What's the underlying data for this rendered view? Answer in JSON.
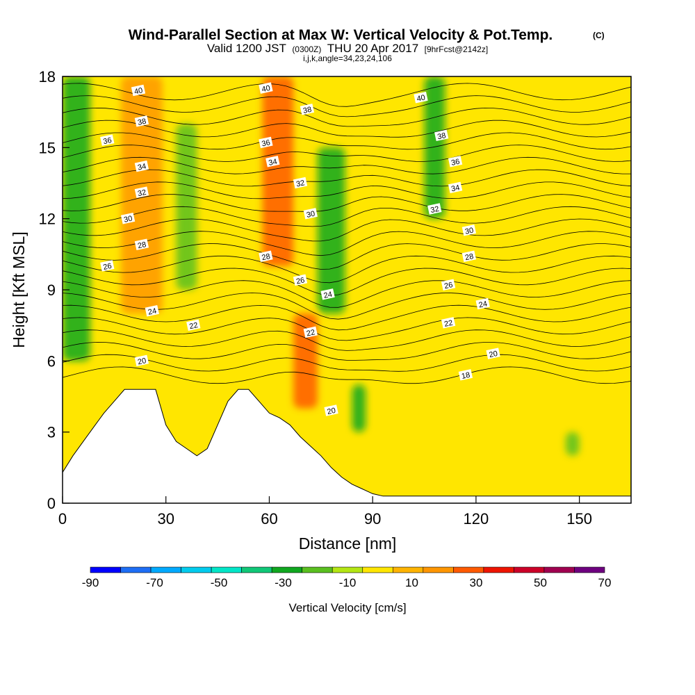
{
  "header": {
    "title": "Wind-Parallel Section at Max W: Vertical Velocity & Pot.Temp.",
    "title_mark": "(C)",
    "valid_prefix": "Valid 1200 JST",
    "valid_zulu": "(0300Z)",
    "valid_date": "THU 20 Apr 2017",
    "valid_fcst": "[9hrFcst@2142z]",
    "section_params": "i,j,k,angle=34,23,24,106"
  },
  "chart_data": {
    "type": "heatmap",
    "title": "Wind-Parallel Section at Max W: Vertical Velocity & Pot.Temp.",
    "xlabel": "Distance [nm]",
    "ylabel": "Height [Kft MSL]",
    "xlim": [
      0,
      165
    ],
    "ylim": [
      0,
      18
    ],
    "x_ticks": [
      0,
      30,
      60,
      90,
      120,
      150
    ],
    "y_ticks": [
      0,
      3,
      6,
      9,
      12,
      15,
      18
    ],
    "colorbar": {
      "label": "Vertical Velocity [cm/s]",
      "bounds": [
        -90,
        -80,
        -70,
        -60,
        -50,
        -40,
        -30,
        -20,
        -10,
        0,
        10,
        20,
        30,
        40,
        50,
        60,
        70
      ],
      "tick_values": [
        -90,
        -70,
        -50,
        -30,
        -10,
        10,
        30,
        50,
        70
      ],
      "colors": [
        "#0000ff",
        "#1e6ef5",
        "#00aaff",
        "#00ccee",
        "#00e6c8",
        "#10c878",
        "#10a820",
        "#5ac020",
        "#b4e614",
        "#ffe600",
        "#ffb400",
        "#ff9600",
        "#ff5a00",
        "#ee1400",
        "#cc0028",
        "#a00050",
        "#6e0080"
      ]
    },
    "velocity_field_cells": [
      {
        "x": [
          0,
          8
        ],
        "y": [
          6,
          18
        ],
        "w": -25
      },
      {
        "x": [
          17,
          29
        ],
        "y": [
          8,
          18
        ],
        "w": 25
      },
      {
        "x": [
          33,
          39
        ],
        "y": [
          9,
          16
        ],
        "w": -12
      },
      {
        "x": [
          58,
          67
        ],
        "y": [
          10,
          18
        ],
        "w": 30
      },
      {
        "x": [
          67,
          74
        ],
        "y": [
          4,
          8
        ],
        "w": 35
      },
      {
        "x": [
          74,
          82
        ],
        "y": [
          8,
          15
        ],
        "w": -25
      },
      {
        "x": [
          84,
          88
        ],
        "y": [
          3,
          5
        ],
        "w": -25
      },
      {
        "x": [
          105,
          111
        ],
        "y": [
          12,
          18
        ],
        "w": -25
      },
      {
        "x": [
          146,
          150
        ],
        "y": [
          2,
          3
        ],
        "w": -20
      }
    ],
    "terrain": {
      "x": [
        0,
        3,
        6,
        9,
        12,
        15,
        18,
        21,
        24,
        27,
        30,
        33,
        36,
        39,
        42,
        45,
        48,
        51,
        54,
        57,
        60,
        63,
        66,
        69,
        72,
        75,
        78,
        81,
        84,
        87,
        90,
        93,
        96,
        99,
        102,
        105,
        108,
        111,
        114,
        117,
        120,
        123,
        126,
        129,
        132,
        135,
        138,
        141,
        144,
        147,
        150,
        153,
        156,
        159,
        162,
        165
      ],
      "height_kft": [
        1.3,
        2.0,
        2.6,
        3.2,
        3.8,
        4.3,
        4.8,
        4.8,
        4.8,
        4.8,
        3.3,
        2.6,
        2.3,
        2.0,
        2.3,
        3.3,
        4.3,
        4.8,
        4.8,
        4.3,
        3.8,
        3.6,
        3.3,
        2.8,
        2.4,
        2.0,
        1.5,
        1.1,
        0.8,
        0.6,
        0.4,
        0.3,
        0.3,
        0.3,
        0.3,
        0.3,
        0.3,
        0.3,
        0.3,
        0.3,
        0.3,
        0.3,
        0.3,
        0.3,
        0.3,
        0.3,
        0.3,
        0.3,
        0.3,
        0.3,
        0.3,
        0.3,
        0.3,
        0.3,
        0.3,
        0.3
      ]
    },
    "theta_contour_labels": [
      {
        "text": "40",
        "x": 22,
        "y": 17.4
      },
      {
        "text": "38",
        "x": 23,
        "y": 16.1
      },
      {
        "text": "36",
        "x": 13,
        "y": 15.3
      },
      {
        "text": "34",
        "x": 23,
        "y": 14.2
      },
      {
        "text": "32",
        "x": 23,
        "y": 13.1
      },
      {
        "text": "30",
        "x": 19,
        "y": 12.0
      },
      {
        "text": "28",
        "x": 23,
        "y": 10.9
      },
      {
        "text": "26",
        "x": 13,
        "y": 10.0
      },
      {
        "text": "24",
        "x": 26,
        "y": 8.1
      },
      {
        "text": "22",
        "x": 38,
        "y": 7.5
      },
      {
        "text": "20",
        "x": 23,
        "y": 6.0
      },
      {
        "text": "40",
        "x": 59,
        "y": 17.5
      },
      {
        "text": "38",
        "x": 71,
        "y": 16.6
      },
      {
        "text": "36",
        "x": 59,
        "y": 15.2
      },
      {
        "text": "34",
        "x": 61,
        "y": 14.4
      },
      {
        "text": "32",
        "x": 69,
        "y": 13.5
      },
      {
        "text": "30",
        "x": 72,
        "y": 12.2
      },
      {
        "text": "28",
        "x": 59,
        "y": 10.4
      },
      {
        "text": "26",
        "x": 69,
        "y": 9.4
      },
      {
        "text": "24",
        "x": 77,
        "y": 8.8
      },
      {
        "text": "22",
        "x": 72,
        "y": 7.2
      },
      {
        "text": "20",
        "x": 78,
        "y": 3.9
      },
      {
        "text": "40",
        "x": 104,
        "y": 17.1
      },
      {
        "text": "38",
        "x": 110,
        "y": 15.5
      },
      {
        "text": "36",
        "x": 114,
        "y": 14.4
      },
      {
        "text": "34",
        "x": 114,
        "y": 13.3
      },
      {
        "text": "32",
        "x": 108,
        "y": 12.4
      },
      {
        "text": "30",
        "x": 118,
        "y": 11.5
      },
      {
        "text": "28",
        "x": 118,
        "y": 10.4
      },
      {
        "text": "26",
        "x": 112,
        "y": 9.2
      },
      {
        "text": "24",
        "x": 122,
        "y": 8.4
      },
      {
        "text": "22",
        "x": 112,
        "y": 7.6
      },
      {
        "text": "20",
        "x": 125,
        "y": 6.3
      },
      {
        "text": "18",
        "x": 117,
        "y": 5.4
      }
    ]
  }
}
